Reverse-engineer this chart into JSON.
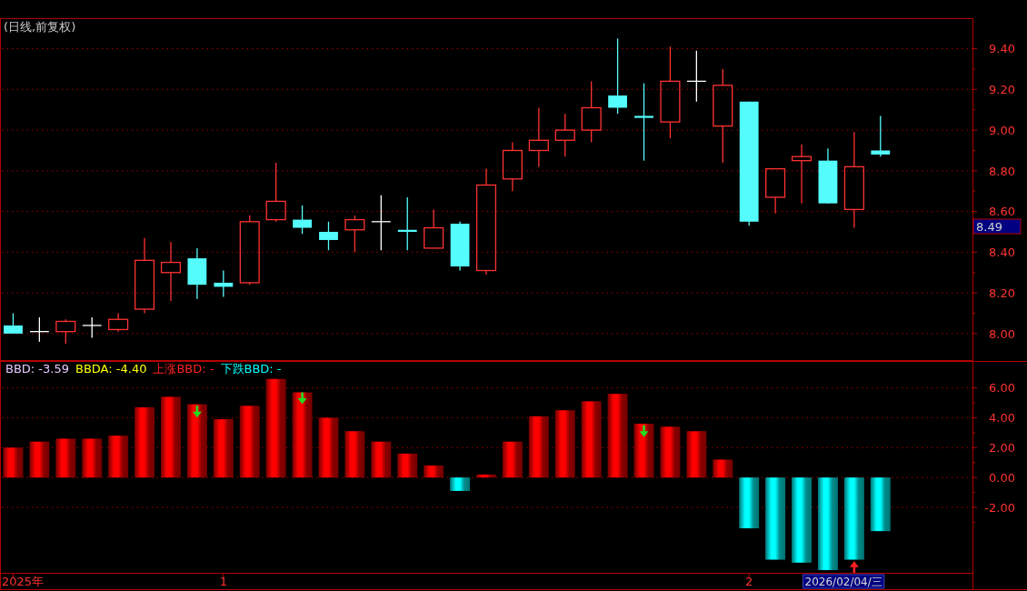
{
  "chart_data": [
    {
      "type": "candlestick",
      "title": "(日线,前复权)",
      "categories": [
        null,
        null,
        null,
        null,
        null,
        null,
        null,
        null,
        null,
        null,
        null,
        null,
        null,
        null,
        null,
        null,
        null,
        null,
        null,
        null,
        null,
        null,
        null,
        null,
        null,
        null,
        null,
        null,
        null,
        null,
        null,
        null,
        null,
        null,
        null,
        null,
        null
      ],
      "ohlc": [
        [
          8.04,
          8.1,
          8.0,
          8.0
        ],
        [
          8.01,
          8.08,
          7.96,
          8.01
        ],
        [
          8.01,
          8.07,
          7.95,
          8.06
        ],
        [
          8.04,
          8.08,
          7.98,
          8.04
        ],
        [
          8.02,
          8.1,
          8.01,
          8.07
        ],
        [
          8.12,
          8.47,
          8.1,
          8.36
        ],
        [
          8.3,
          8.45,
          8.16,
          8.35
        ],
        [
          8.37,
          8.42,
          8.17,
          8.24
        ],
        [
          8.25,
          8.31,
          8.18,
          8.23
        ],
        [
          8.25,
          8.58,
          8.24,
          8.55
        ],
        [
          8.56,
          8.84,
          8.55,
          8.65
        ],
        [
          8.56,
          8.63,
          8.49,
          8.52
        ],
        [
          8.5,
          8.55,
          8.41,
          8.46
        ],
        [
          8.51,
          8.58,
          8.4,
          8.56
        ],
        [
          8.55,
          8.68,
          8.41,
          8.55
        ],
        [
          8.51,
          8.67,
          8.41,
          8.5
        ],
        [
          8.42,
          8.61,
          8.42,
          8.52
        ],
        [
          8.54,
          8.55,
          8.31,
          8.33
        ],
        [
          8.31,
          8.81,
          8.29,
          8.73
        ],
        [
          8.76,
          8.94,
          8.7,
          8.9
        ],
        [
          8.9,
          9.11,
          8.82,
          8.95
        ],
        [
          8.95,
          9.08,
          8.87,
          9.0
        ],
        [
          9.0,
          9.24,
          8.94,
          9.11
        ],
        [
          9.17,
          9.45,
          9.08,
          9.11
        ],
        [
          9.07,
          9.23,
          8.85,
          9.06
        ],
        [
          9.04,
          9.41,
          8.96,
          9.24
        ],
        [
          9.24,
          9.39,
          9.14,
          9.24
        ],
        [
          9.02,
          9.3,
          8.84,
          9.22
        ],
        [
          9.14,
          9.14,
          8.53,
          8.55
        ],
        [
          8.67,
          8.81,
          8.59,
          8.81
        ],
        [
          8.85,
          8.93,
          8.64,
          8.87
        ],
        [
          8.85,
          8.91,
          8.64,
          8.64
        ],
        [
          8.61,
          8.99,
          8.52,
          8.82
        ],
        [
          8.9,
          9.07,
          8.87,
          8.88
        ],
        null,
        null,
        null
      ],
      "colors": [
        "#54fcfc",
        "#ffffff",
        "#ff3232",
        "#ffffff",
        "#ff3232",
        "#ff3232",
        "#ff3232",
        "#54fcfc",
        "#54fcfc",
        "#ff3232",
        "#ff3232",
        "#54fcfc",
        "#54fcfc",
        "#ff3232",
        "#ffffff",
        "#54fcfc",
        "#ff3232",
        "#54fcfc",
        "#ff3232",
        "#ff3232",
        "#ff3232",
        "#ff3232",
        "#ff3232",
        "#54fcfc",
        "#54fcfc",
        "#ff3232",
        "#ffffff",
        "#ff3232",
        "#54fcfc",
        "#ff3232",
        "#ff3232",
        "#54fcfc",
        "#ff3232",
        "#54fcfc",
        null,
        null,
        null
      ],
      "ylim": [
        7.87,
        9.55
      ],
      "yticks": [
        {
          "value": 9.4,
          "label": "9.40"
        },
        {
          "value": 9.3,
          "label": null
        },
        {
          "value": 9.2,
          "label": "9.20"
        },
        {
          "value": 9.1,
          "label": null
        },
        {
          "value": 9.0,
          "label": "9.00"
        },
        {
          "value": 8.9,
          "label": null
        },
        {
          "value": 8.8,
          "label": "8.80"
        },
        {
          "value": 8.7,
          "label": null
        },
        {
          "value": 8.6,
          "label": "8.60"
        },
        {
          "value": 8.5,
          "label": null
        },
        {
          "value": 8.4,
          "label": "8.40"
        },
        {
          "value": 8.3,
          "label": null
        },
        {
          "value": 8.2,
          "label": "8.20"
        },
        {
          "value": 8.1,
          "label": null
        },
        {
          "value": 8.0,
          "label": "8.00"
        }
      ],
      "grid": "y",
      "tick_labels": "y",
      "annotations": [
        "8.49"
      ]
    },
    {
      "type": "bar",
      "categories": [
        "2025年",
        null,
        null,
        null,
        null,
        null,
        null,
        null,
        "1",
        null,
        null,
        null,
        null,
        null,
        null,
        null,
        null,
        null,
        null,
        null,
        null,
        null,
        null,
        null,
        null,
        null,
        null,
        null,
        "2",
        null,
        null,
        null,
        null,
        null,
        null,
        null,
        null
      ],
      "series": [
        {
          "type": "bar",
          "color": "#ff0000",
          "values": [
            2.0,
            2.4,
            2.6,
            2.6,
            2.8,
            4.7,
            5.4,
            4.9,
            3.9,
            4.8,
            6.6,
            5.7,
            4.0,
            3.1,
            2.4,
            1.6,
            0.8,
            null,
            0.2,
            2.4,
            4.1,
            4.5,
            5.1,
            5.6,
            3.6,
            3.4,
            3.1,
            1.2,
            null,
            null,
            null,
            null,
            null,
            null,
            null,
            null,
            null
          ]
        },
        {
          "type": "bar",
          "color": "#00ffff",
          "values": [
            null,
            null,
            null,
            null,
            null,
            null,
            null,
            null,
            null,
            null,
            null,
            null,
            null,
            null,
            null,
            null,
            null,
            -0.9,
            null,
            null,
            null,
            null,
            null,
            null,
            null,
            null,
            null,
            null,
            -3.4,
            -5.5,
            -5.7,
            -6.2,
            -5.5,
            -3.59,
            null,
            null,
            null
          ]
        },
        {
          "type": "scatter",
          "color": "#22dd22",
          "marker": "triangle",
          "values": [
            null,
            null,
            null,
            null,
            null,
            null,
            null,
            4.4,
            null,
            null,
            null,
            5.3,
            null,
            null,
            null,
            null,
            null,
            null,
            null,
            null,
            null,
            null,
            null,
            null,
            3.1,
            null,
            null,
            null,
            null,
            null,
            null,
            null,
            null,
            null,
            null,
            null,
            null
          ]
        },
        {
          "type": "scatter",
          "color": "#ff2020",
          "marker": "triangle",
          "values": [
            null,
            null,
            null,
            null,
            null,
            null,
            null,
            null,
            null,
            null,
            null,
            null,
            null,
            null,
            null,
            null,
            null,
            null,
            null,
            null,
            null,
            null,
            null,
            null,
            null,
            null,
            null,
            null,
            null,
            null,
            null,
            null,
            -6.0,
            null,
            null,
            null,
            null
          ]
        }
      ],
      "ylim": [
        -6.38,
        7.8
      ],
      "yticks": [
        {
          "value": 6,
          "label": "6.00"
        },
        {
          "value": 5,
          "label": null
        },
        {
          "value": 4,
          "label": "4.00"
        },
        {
          "value": 3,
          "label": null
        },
        {
          "value": 2,
          "label": "2.00"
        },
        {
          "value": 1,
          "label": null
        },
        {
          "value": 0,
          "label": "0.00"
        },
        {
          "value": -1,
          "label": null
        },
        {
          "value": -2,
          "label": "-2.00"
        },
        {
          "value": -3,
          "label": null
        }
      ],
      "grid": "y",
      "annotations": [
        "BBD: -3.59",
        "BBDA: -4.40",
        "上涨BBD: -",
        "下跌BBD: -",
        "2026/02/04/三"
      ]
    }
  ]
}
